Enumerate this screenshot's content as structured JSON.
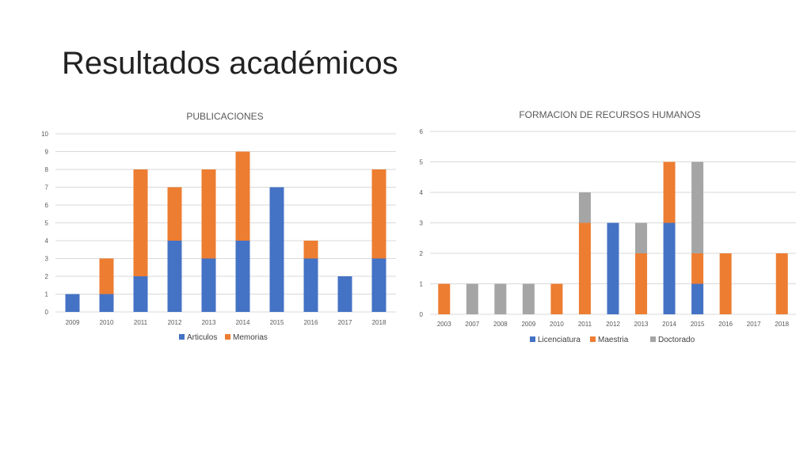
{
  "slide": {
    "title": "Resultados académicos"
  },
  "colors": {
    "blue": "#4472C4",
    "orange": "#ED7D31",
    "gray": "#A5A5A5",
    "grid": "#D9D9D9",
    "text": "#595959"
  },
  "chart_data": [
    {
      "type": "bar",
      "stacked": true,
      "title": "PUBLICACIONES",
      "categories": [
        "2009",
        "2010",
        "2011",
        "2012",
        "2013",
        "2014",
        "2015",
        "2016",
        "2017",
        "2018"
      ],
      "series": [
        {
          "name": "Articulos",
          "color": "#4472C4",
          "values": [
            1,
            1,
            2,
            4,
            3,
            4,
            7,
            3,
            2,
            3
          ]
        },
        {
          "name": "Memorias",
          "color": "#ED7D31",
          "values": [
            0,
            2,
            6,
            3,
            5,
            5,
            0,
            1,
            0,
            5
          ]
        }
      ],
      "ylim": [
        0,
        10
      ],
      "yticks": [
        0,
        1,
        2,
        3,
        4,
        5,
        6,
        7,
        8,
        9,
        10
      ],
      "grid": true,
      "legend": "bottom"
    },
    {
      "type": "bar",
      "stacked": true,
      "title": "FORMACION DE RECURSOS HUMANOS",
      "categories": [
        "2003",
        "2007",
        "2008",
        "2009",
        "2010",
        "2011",
        "2012",
        "2013",
        "2014",
        "2015",
        "2016",
        "2017",
        "2018"
      ],
      "series": [
        {
          "name": "Licenciatura",
          "color": "#4472C4",
          "values": [
            0,
            0,
            0,
            0,
            0,
            0,
            3,
            0,
            3,
            1,
            0,
            0,
            0
          ]
        },
        {
          "name": "Maestria",
          "color": "#ED7D31",
          "values": [
            1,
            0,
            0,
            0,
            1,
            3,
            0,
            2,
            2,
            1,
            2,
            0,
            2
          ]
        },
        {
          "name": "Doctorado",
          "color": "#A5A5A5",
          "values": [
            0,
            1,
            1,
            1,
            0,
            1,
            0,
            1,
            0,
            3,
            0,
            0,
            0
          ]
        }
      ],
      "ylim": [
        0,
        6
      ],
      "yticks": [
        0,
        1,
        2,
        3,
        4,
        5,
        6
      ],
      "grid": true,
      "legend": "bottom"
    }
  ]
}
